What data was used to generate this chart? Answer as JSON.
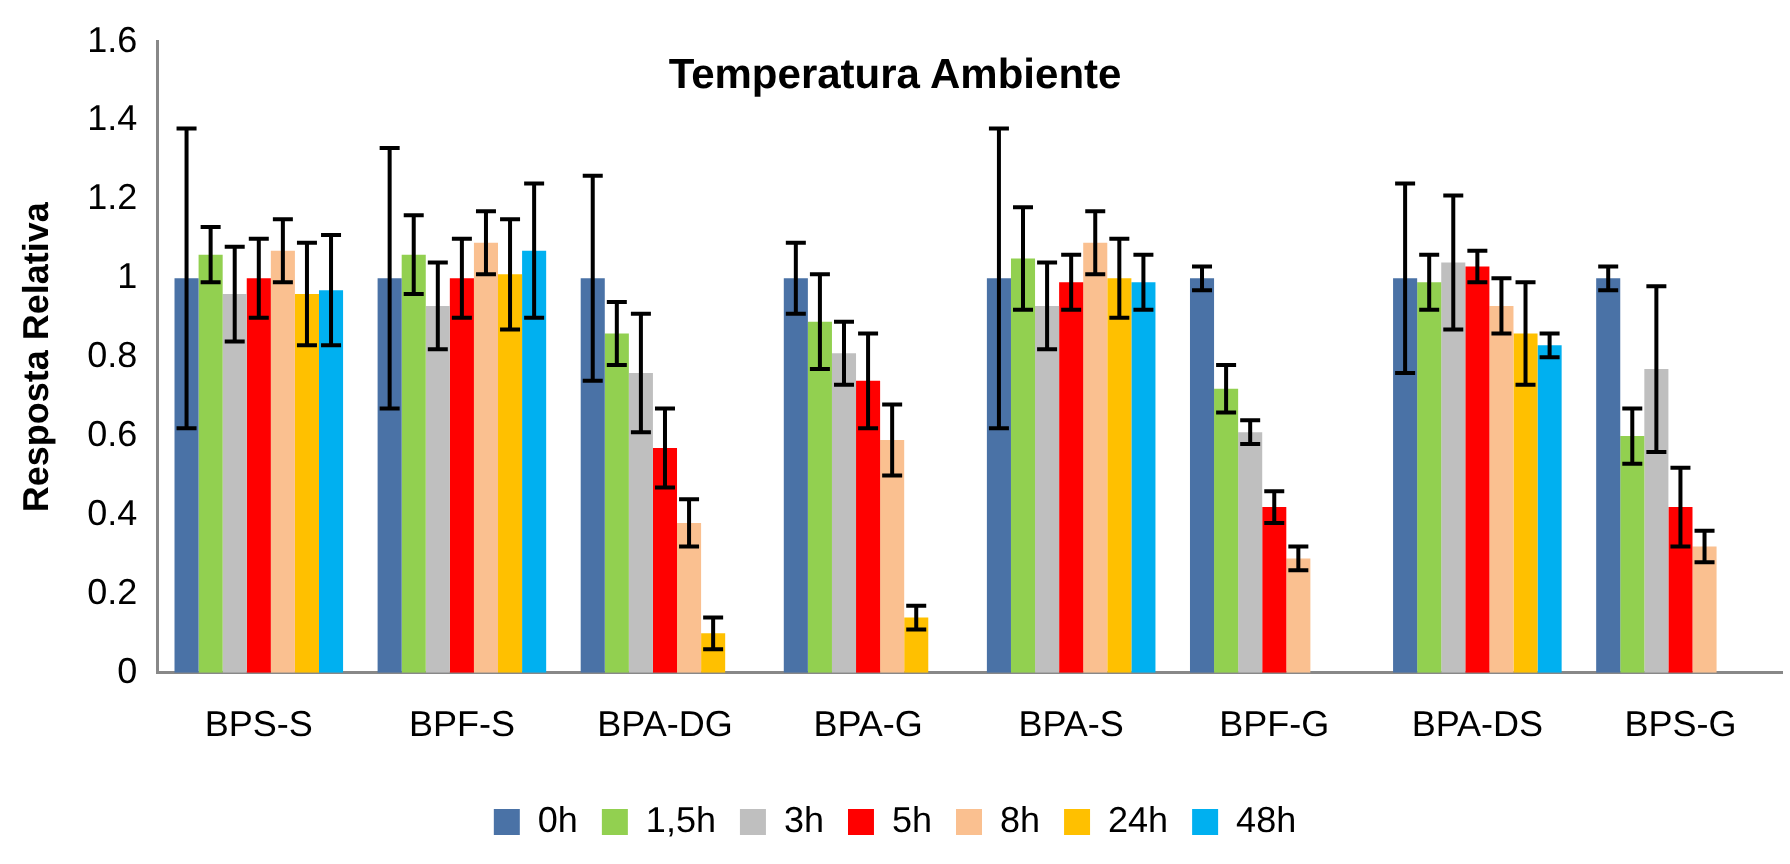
{
  "chart_data": {
    "type": "bar",
    "title": "Temperatura Ambiente",
    "ylabel": "Resposta Relativa",
    "categories": [
      "BPS-S",
      "BPF-S",
      "BPA-DG",
      "BPA-G",
      "BPA-S",
      "BPF-G",
      "BPA-DS",
      "BPS-G"
    ],
    "series": [
      {
        "name": "0h",
        "color": "#4a72a6",
        "values": [
          1.0,
          1.0,
          1.0,
          1.0,
          1.0,
          1.0,
          1.0,
          1.0
        ],
        "errors": [
          0.38,
          0.33,
          0.26,
          0.09,
          0.38,
          0.03,
          0.24,
          0.03
        ]
      },
      {
        "name": "1,5h",
        "color": "#92d050",
        "values": [
          1.06,
          1.06,
          0.86,
          0.89,
          1.05,
          0.72,
          0.99,
          0.6
        ],
        "errors": [
          0.07,
          0.1,
          0.08,
          0.12,
          0.13,
          0.06,
          0.07,
          0.07
        ]
      },
      {
        "name": "3h",
        "color": "#bfbfbf",
        "values": [
          0.96,
          0.93,
          0.76,
          0.81,
          0.93,
          0.61,
          1.04,
          0.77
        ],
        "errors": [
          0.12,
          0.11,
          0.15,
          0.08,
          0.11,
          0.03,
          0.17,
          0.21
        ]
      },
      {
        "name": "5h",
        "color": "#ff0000",
        "values": [
          1.0,
          1.0,
          0.57,
          0.74,
          0.99,
          0.42,
          1.03,
          0.42
        ],
        "errors": [
          0.1,
          0.1,
          0.1,
          0.12,
          0.07,
          0.04,
          0.04,
          0.1
        ]
      },
      {
        "name": "8h",
        "color": "#fac090",
        "values": [
          1.07,
          1.09,
          0.38,
          0.59,
          1.09,
          0.29,
          0.93,
          0.32
        ],
        "errors": [
          0.08,
          0.08,
          0.06,
          0.09,
          0.08,
          0.03,
          0.07,
          0.04
        ]
      },
      {
        "name": "24h",
        "color": "#ffc000",
        "values": [
          0.96,
          1.01,
          0.1,
          0.14,
          1.0,
          0,
          0.86,
          0
        ],
        "errors": [
          0.13,
          0.14,
          0.04,
          0.03,
          0.1,
          null,
          0.13,
          null
        ]
      },
      {
        "name": "48h",
        "color": "#00b0f0",
        "values": [
          0.97,
          1.07,
          0,
          0,
          0.99,
          0,
          0.83,
          0
        ],
        "errors": [
          0.14,
          0.17,
          null,
          null,
          0.07,
          null,
          0.03,
          null
        ]
      }
    ],
    "ylim": [
      0,
      1.6
    ],
    "yticks": [
      0,
      0.2,
      0.4,
      0.6,
      0.8,
      1,
      1.2,
      1.4,
      1.6
    ],
    "grid": false,
    "legend": "bottom"
  }
}
